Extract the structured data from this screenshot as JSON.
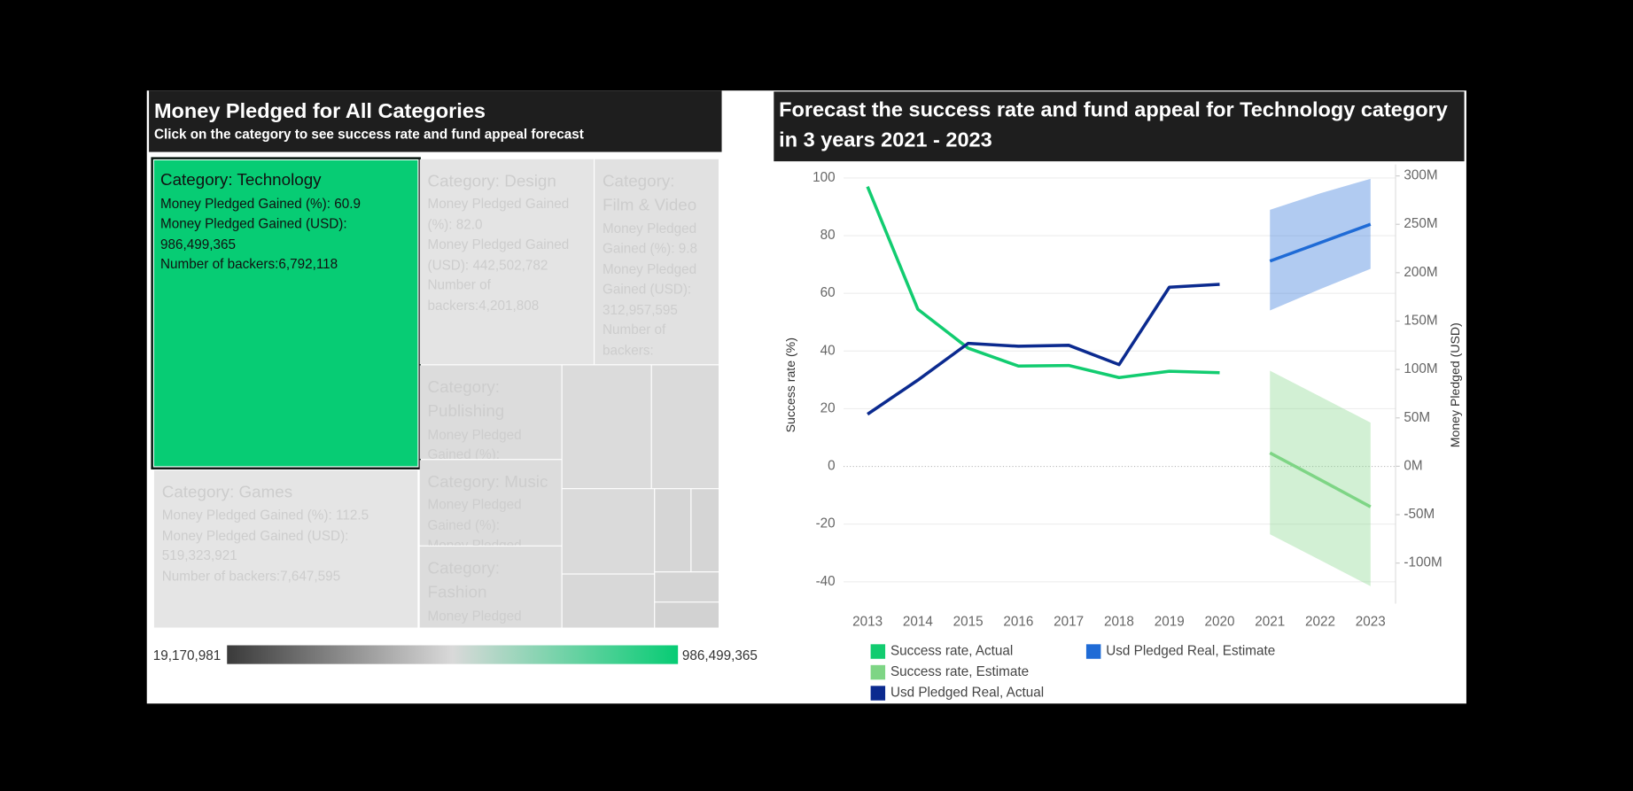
{
  "chart_data": [
    {
      "type": "treemap",
      "title": "Money Pledged for All Categories",
      "subtitle": "Click on the category to see success rate and fund appeal forecast",
      "categories": [
        "Category: Technology",
        "Category: Games",
        "Category: Design",
        "Category: Film & Video",
        "Category: Publishing",
        "Category: Music",
        "Category: Fashion",
        null,
        null,
        null,
        null,
        null,
        null,
        null,
        null
      ],
      "values": [
        986499365,
        519323921,
        442502782,
        312957595,
        165000000,
        150000000,
        143000000,
        135000000,
        102000000,
        96000000,
        61000000,
        36000000,
        28000000,
        23000000,
        19170981
      ],
      "value_labels": [
        "986,499,365",
        "519,323,921",
        "442,502,782",
        "312,957,595",
        null,
        null,
        null,
        null,
        null,
        null,
        null,
        null,
        null,
        null,
        null
      ],
      "pct_labels": [
        "60.9",
        "112.5",
        "82.0",
        "9.8",
        null,
        null,
        null,
        null,
        null,
        null,
        null,
        null,
        null,
        null,
        null
      ],
      "backers_labels": [
        "6,792,118",
        "7,647,595",
        "4,201,808",
        null,
        null,
        null,
        null,
        null,
        null,
        null,
        null,
        null,
        null,
        null,
        null
      ],
      "field_labels": {
        "pct": "Money Pledged Gained (%):",
        "usd": "Money Pledged Gained (USD):",
        "backers": "Number of backers:"
      },
      "selected": 0,
      "selected_color": "#07cc74",
      "color_range": [
        {
          "value": 19170981,
          "label": "19,170,981"
        },
        {
          "value": 986499365,
          "label": "986,499,365"
        }
      ]
    },
    {
      "type": "line",
      "title": "Forecast the success rate and fund appeal for Technology category in 3 years 2021 - 2023",
      "y_label": "Success rate (%)",
      "y2_label": "Money Pledged (USD)",
      "x": [
        2013,
        2014,
        2015,
        2016,
        2017,
        2018,
        2019,
        2020,
        2021,
        2022,
        2023
      ],
      "ylim": [
        -40,
        100
      ],
      "yticks": [
        100,
        80,
        60,
        40,
        20,
        0,
        -20,
        -40
      ],
      "y2lim": [
        -100000000,
        300000000
      ],
      "y2ticks": [
        {
          "value": 300000000,
          "label": "300M"
        },
        {
          "value": 250000000,
          "label": "250M"
        },
        {
          "value": 200000000,
          "label": "200M"
        },
        {
          "value": 150000000,
          "label": "150M"
        },
        {
          "value": 100000000,
          "label": "100M"
        },
        {
          "value": 50000000,
          "label": "50M"
        },
        {
          "value": 0,
          "label": "0M"
        },
        {
          "value": -50000000,
          "label": "-50M"
        },
        {
          "value": -100000000,
          "label": "-100M"
        }
      ],
      "grid": true,
      "series": [
        {
          "name": "Success rate, Actual",
          "color": "#12cc70",
          "values": [
            97,
            54.5,
            41,
            34.8,
            35,
            30.8,
            33,
            32.5,
            null,
            null,
            null
          ]
        },
        {
          "name": "Success rate, Estimate",
          "color": "#7ed585",
          "values": [
            null,
            null,
            null,
            null,
            null,
            null,
            null,
            null,
            4.7,
            -4.6,
            -14
          ],
          "lower": [
            null,
            null,
            null,
            null,
            null,
            null,
            null,
            null,
            -23.5,
            -32.5,
            -41.5
          ],
          "upper": [
            null,
            null,
            null,
            null,
            null,
            null,
            null,
            null,
            33.2,
            24.2,
            15.2
          ]
        },
        {
          "name": "Usd Pledged Real, Actual",
          "color": "#0b2a8f",
          "axis": "y2",
          "values": [
            53800000,
            89000000,
            127000000,
            124000000,
            125000000,
            105000000,
            185000000,
            188000000,
            null,
            null,
            null
          ]
        },
        {
          "name": "Usd Pledged Real, Estimate",
          "color": "#1f6bd6",
          "axis": "y2",
          "values": [
            null,
            null,
            null,
            null,
            null,
            null,
            null,
            null,
            212000000,
            231000000,
            250000000
          ],
          "lower": [
            null,
            null,
            null,
            null,
            null,
            null,
            null,
            null,
            161000000,
            183000000,
            204000000
          ],
          "upper": [
            null,
            null,
            null,
            null,
            null,
            null,
            null,
            null,
            265000000,
            282000000,
            297000000
          ]
        }
      ]
    }
  ]
}
